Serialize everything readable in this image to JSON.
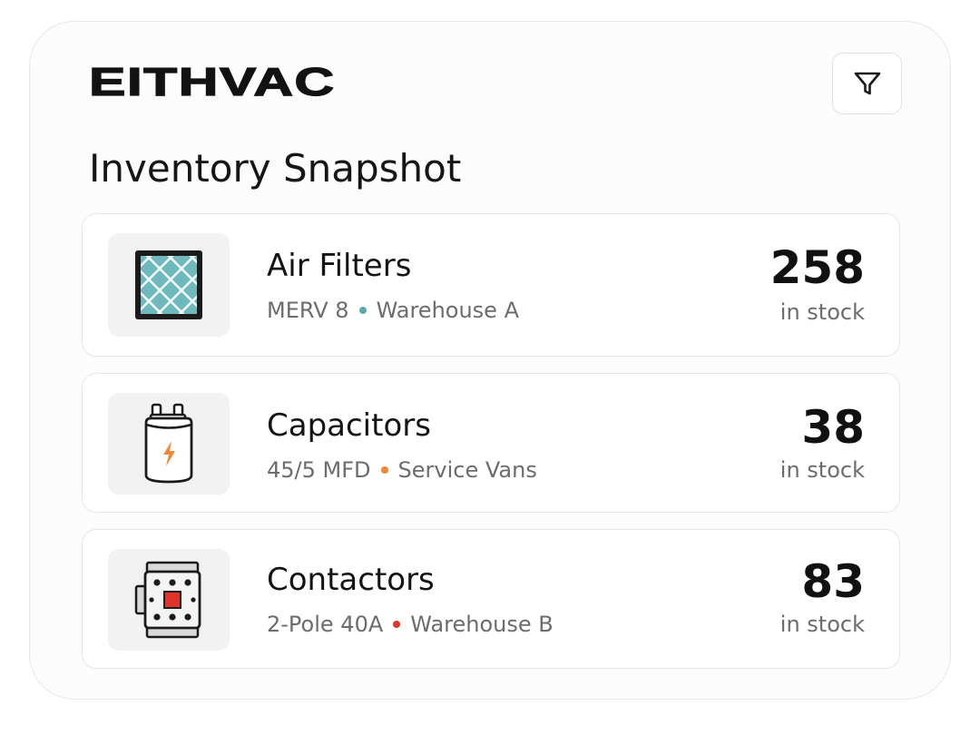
{
  "brand": {
    "logo_text": "EITHVAC"
  },
  "toolbar": {
    "filter_icon": "filter-icon"
  },
  "page": {
    "title": "Inventory Snapshot"
  },
  "items": [
    {
      "name": "Air Filters",
      "spec": "MERV 8",
      "location": "Warehouse A",
      "count": "258",
      "count_label": "in stock",
      "icon": "air-filter-icon",
      "dot_color": "#5aa9b1"
    },
    {
      "name": "Capacitors",
      "spec": "45/5 MFD",
      "location": "Service Vans",
      "count": "38",
      "count_label": "in stock",
      "icon": "capacitor-icon",
      "dot_color": "#f0883a"
    },
    {
      "name": "Contactors",
      "spec": "2-Pole 40A",
      "location": "Warehouse B",
      "count": "83",
      "count_label": "in stock",
      "icon": "contactor-icon",
      "dot_color": "#e0342a"
    }
  ],
  "colors": {
    "filter_teal": "#6fb8bd",
    "capacitor_bolt": "#f0883a",
    "contactor_red": "#e0342a"
  }
}
